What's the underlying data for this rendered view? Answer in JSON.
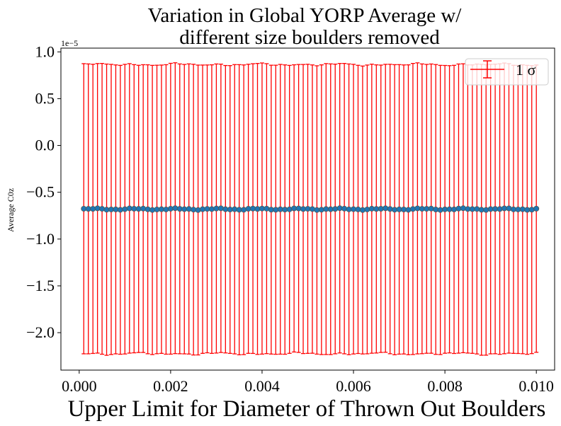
{
  "chart_data": {
    "type": "scatter",
    "title_line1": "Variation in Global YORP Average w/",
    "title_line2": "different size boulders removed",
    "xlabel": "Upper Limit for Diameter of Thrown Out Boulders",
    "ylabel": "Average C0z",
    "offset_text": "1e−5",
    "xlim": [
      -0.0004,
      0.0104
    ],
    "ylim": [
      -2.4,
      1.04
    ],
    "x_ticks": [
      0.0,
      0.002,
      0.004,
      0.006,
      0.008,
      0.01
    ],
    "x_tick_labels": [
      "0.000",
      "0.002",
      "0.004",
      "0.006",
      "0.008",
      "0.010"
    ],
    "y_ticks": [
      1.0,
      0.5,
      0.0,
      -0.5,
      -1.0,
      -1.5,
      -2.0
    ],
    "y_tick_labels": [
      "1.0",
      "0.5",
      "0.0",
      "−0.5",
      "−1.0",
      "−1.5",
      "−2.0"
    ],
    "legend": {
      "label": "1 σ",
      "placement": "top-right"
    },
    "grid": false,
    "colors": {
      "errorbar": "#ff0000",
      "marker": "#1f77b4",
      "marker_edge": "#555555"
    },
    "series": [
      {
        "x_start": 0.0001,
        "x_end": 0.01,
        "x_step": 0.0001,
        "mean": -0.68,
        "sigma": 1.545,
        "y_unit_note": "values scaled by 1e-5"
      }
    ]
  }
}
